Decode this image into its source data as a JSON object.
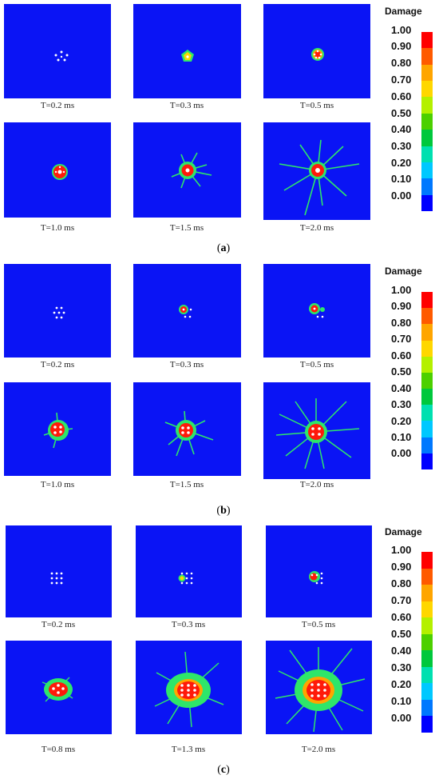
{
  "colors": {
    "background_blue": "#0a14f5",
    "crack_green": "#2ee66a",
    "core_red": "#ff1a0a",
    "hole_white": "#ffffff"
  },
  "legend": {
    "title": "Damage",
    "ticks": [
      "1.00",
      "0.90",
      "0.80",
      "0.70",
      "0.60",
      "0.50",
      "0.40",
      "0.30",
      "0.20",
      "0.10",
      "0.00"
    ],
    "colors": [
      "#ff0000",
      "#ff5a00",
      "#ffa500",
      "#ffd700",
      "#b4f000",
      "#4cd000",
      "#00c83c",
      "#00e0b0",
      "#00c8ff",
      "#0078ff",
      "#0000ff"
    ]
  },
  "groups": [
    {
      "label": "(a)",
      "captions": [
        "T=0.2 ms",
        "T=0.3 ms",
        "T=0.5 ms",
        "T=1.0 ms",
        "T=1.5 ms",
        "T=2.0 ms"
      ]
    },
    {
      "label": "(b)",
      "captions": [
        "T=0.2 ms",
        "T=0.3 ms",
        "T=0.5 ms",
        "T=1.0 ms",
        "T=1.5 ms",
        "T=2.0 ms"
      ]
    },
    {
      "label": "(c)",
      "captions": [
        "T=0.2 ms",
        "T=0.3 ms",
        "T=0.5 ms",
        "T=0.8 ms",
        "T=1.3 ms",
        "T=2.0 ms"
      ]
    }
  ]
}
